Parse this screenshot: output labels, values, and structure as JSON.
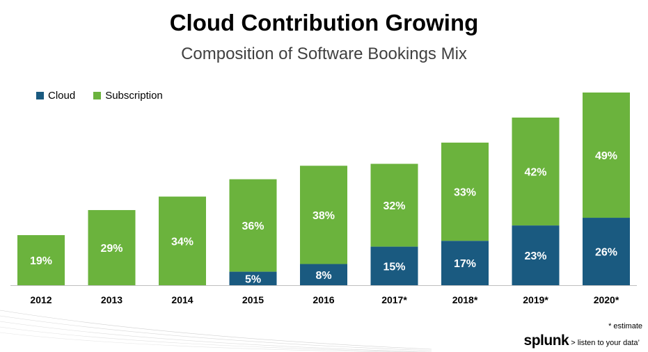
{
  "title": "Cloud Contribution Growing",
  "subtitle": "Composition of Software Bookings Mix",
  "footnote": "* estimate",
  "logo": {
    "word": "splunk",
    "tagline": "> listen to your data’"
  },
  "colors": {
    "cloud": "#1a5a80",
    "subscription": "#6bb33d"
  },
  "chart_data": {
    "type": "bar",
    "stacked": true,
    "categories": [
      "2012",
      "2013",
      "2014",
      "2015",
      "2016",
      "2017*",
      "2018*",
      "2019*",
      "2020*"
    ],
    "totals": [
      26,
      39,
      46,
      55,
      62,
      63,
      74,
      87,
      100
    ],
    "series": [
      {
        "name": "Cloud",
        "values": [
          0,
          0,
          0,
          7,
          11,
          20,
          23,
          31,
          35
        ],
        "labels": [
          "",
          "",
          "",
          "5%",
          "8%",
          "15%",
          "17%",
          "23%",
          "26%"
        ]
      },
      {
        "name": "Subscription",
        "values": [
          26,
          39,
          46,
          48,
          51,
          43,
          51,
          56,
          65
        ],
        "labels": [
          "19%",
          "29%",
          "34%",
          "36%",
          "38%",
          "32%",
          "33%",
          "42%",
          "49%"
        ]
      }
    ],
    "legend_position": "top-left",
    "grid": false
  }
}
